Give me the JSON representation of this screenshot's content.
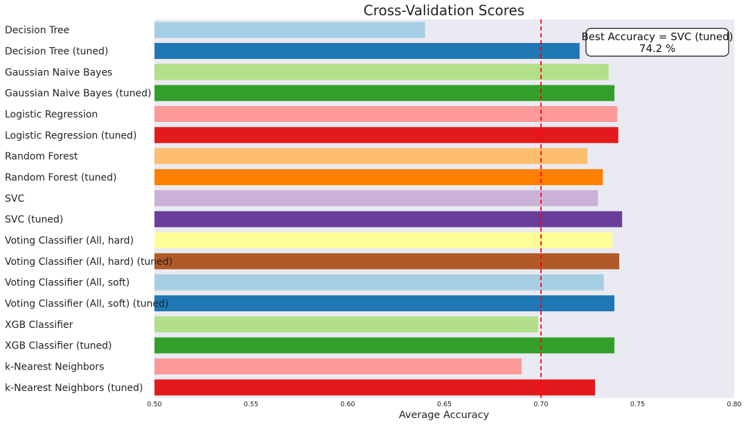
{
  "chart_data": {
    "type": "bar",
    "orientation": "horizontal",
    "title": "Cross-Validation Scores",
    "xlabel": "Average Accuracy",
    "ylabel": "",
    "xlim": [
      0.5,
      0.8
    ],
    "xticks": [
      "0.50",
      "0.55",
      "0.60",
      "0.65",
      "0.70",
      "0.75",
      "0.80"
    ],
    "grid": false,
    "categories": [
      "Decision Tree",
      "Decision Tree (tuned)",
      "Gaussian Naive Bayes",
      "Gaussian Naive Bayes (tuned)",
      "Logistic Regression",
      "Logistic Regression (tuned)",
      "Random Forest",
      "Random Forest (tuned)",
      "SVC",
      "SVC (tuned)",
      "Voting Classifier (All, hard)",
      "Voting Classifier (All, hard) (tuned)",
      "Voting Classifier (All, soft)",
      "Voting Classifier (All, soft) (tuned)",
      "XGB Classifier",
      "XGB Classifier (tuned)",
      "k-Nearest Neighbors",
      "k-Nearest Neighbors (tuned)"
    ],
    "values": [
      0.64,
      0.72,
      0.735,
      0.738,
      0.7395,
      0.74,
      0.724,
      0.732,
      0.7295,
      0.742,
      0.737,
      0.7405,
      0.7325,
      0.738,
      0.6985,
      0.738,
      0.69,
      0.728
    ],
    "colors": [
      "#a6cee3",
      "#1f78b4",
      "#b2df8a",
      "#33a02c",
      "#fb9a99",
      "#e31a1c",
      "#fdbf6f",
      "#ff7f00",
      "#cab2d6",
      "#6a3d9a",
      "#ffff99",
      "#b15928",
      "#a6cee3",
      "#1f78b4",
      "#b2df8a",
      "#33a02c",
      "#fb9a99",
      "#e31a1c"
    ],
    "reference_line": {
      "value": 0.7,
      "color": "#ff0000",
      "style": "dashed"
    },
    "annotation": {
      "line1": "Best Accuracy = SVC (tuned)",
      "line2": "74.2 %",
      "placement": "top-right"
    },
    "background": "#eaeaf2"
  }
}
